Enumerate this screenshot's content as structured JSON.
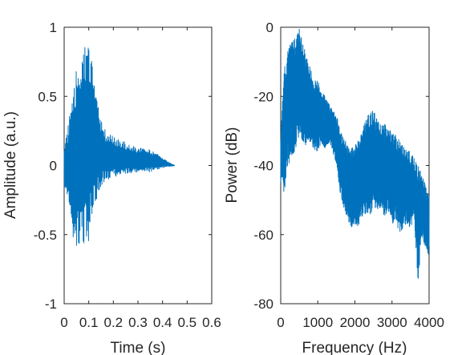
{
  "chart_data": [
    {
      "type": "line",
      "title": "",
      "xlabel": "Time (s)",
      "ylabel": "Amplitude (a.u.)",
      "xlim": [
        0,
        0.6
      ],
      "ylim": [
        -1,
        1
      ],
      "xticks": [
        "0",
        "0.1",
        "0.2",
        "0.3",
        "0.4",
        "0.5",
        "0.6"
      ],
      "yticks": [
        "-1",
        "-0.5",
        "0",
        "0.5",
        "1"
      ],
      "grid": false,
      "legend": "none",
      "color": "#0072bd",
      "series": [
        {
          "signal": "decaying oscillation (time-domain waveform)",
          "x": [
            0,
            0.01,
            0.02,
            0.03,
            0.04,
            0.05,
            0.06,
            0.07,
            0.08,
            0.09,
            0.1,
            0.11,
            0.12,
            0.13,
            0.14,
            0.15,
            0.16,
            0.17,
            0.18,
            0.19,
            0.2,
            0.22,
            0.24,
            0.26,
            0.28,
            0.3,
            0.32,
            0.34,
            0.36,
            0.38,
            0.4,
            0.42,
            0.44,
            0.45
          ],
          "upper_envelope": [
            0.18,
            0.25,
            0.35,
            0.45,
            0.55,
            0.7,
            0.8,
            0.87,
            0.91,
            0.93,
            0.9,
            0.8,
            0.65,
            0.5,
            0.42,
            0.33,
            0.28,
            0.25,
            0.24,
            0.23,
            0.21,
            0.19,
            0.18,
            0.15,
            0.14,
            0.13,
            0.13,
            0.12,
            0.1,
            0.09,
            0.06,
            0.03,
            0.01,
            0.0
          ],
          "lower_envelope": [
            -0.15,
            -0.25,
            -0.35,
            -0.45,
            -0.55,
            -0.6,
            -0.63,
            -0.63,
            -0.62,
            -0.6,
            -0.55,
            -0.45,
            -0.35,
            -0.28,
            -0.2,
            -0.15,
            -0.12,
            -0.11,
            -0.1,
            -0.1,
            -0.09,
            -0.08,
            -0.07,
            -0.06,
            -0.06,
            -0.05,
            -0.05,
            -0.05,
            -0.04,
            -0.03,
            -0.02,
            -0.01,
            -0.005,
            0.0
          ]
        }
      ]
    },
    {
      "type": "line",
      "title": "",
      "xlabel": "Frequency (Hz)",
      "ylabel": "Power (dB)",
      "xlim": [
        0,
        4000
      ],
      "ylim": [
        -80,
        0
      ],
      "xticks": [
        "0",
        "1000",
        "2000",
        "3000",
        "4000"
      ],
      "yticks": [
        "-80",
        "-60",
        "-40",
        "-20",
        "0"
      ],
      "grid": false,
      "legend": "none",
      "color": "#0072bd",
      "series": [
        {
          "signal": "power spectrum",
          "x": [
            0,
            100,
            200,
            300,
            400,
            500,
            600,
            700,
            800,
            900,
            1000,
            1100,
            1200,
            1300,
            1400,
            1500,
            1600,
            1700,
            1800,
            1900,
            2000,
            2100,
            2200,
            2300,
            2400,
            2500,
            2600,
            2700,
            2800,
            2900,
            3000,
            3100,
            3200,
            3300,
            3400,
            3500,
            3600,
            3700,
            3800,
            3900,
            4000
          ],
          "upper_envelope": [
            -30,
            -12,
            -5,
            -4,
            -3,
            0,
            -5,
            -8,
            -12,
            -15,
            -15,
            -18,
            -20,
            -22,
            -24,
            -25,
            -30,
            -32,
            -34,
            -35,
            -34,
            -32,
            -30,
            -26,
            -25,
            -24,
            -26,
            -28,
            -28,
            -29,
            -30,
            -31,
            -32,
            -34,
            -35,
            -36,
            -38,
            -40,
            -42,
            -45,
            -48
          ],
          "lower_envelope": [
            -45,
            -48,
            -40,
            -38,
            -35,
            -32,
            -34,
            -35,
            -33,
            -36,
            -36,
            -34,
            -35,
            -34,
            -36,
            -40,
            -48,
            -52,
            -56,
            -58,
            -57,
            -58,
            -55,
            -54,
            -55,
            -52,
            -53,
            -52,
            -55,
            -53,
            -57,
            -56,
            -60,
            -58,
            -57,
            -58,
            -55,
            -75,
            -60,
            -64,
            -66
          ]
        }
      ]
    }
  ]
}
